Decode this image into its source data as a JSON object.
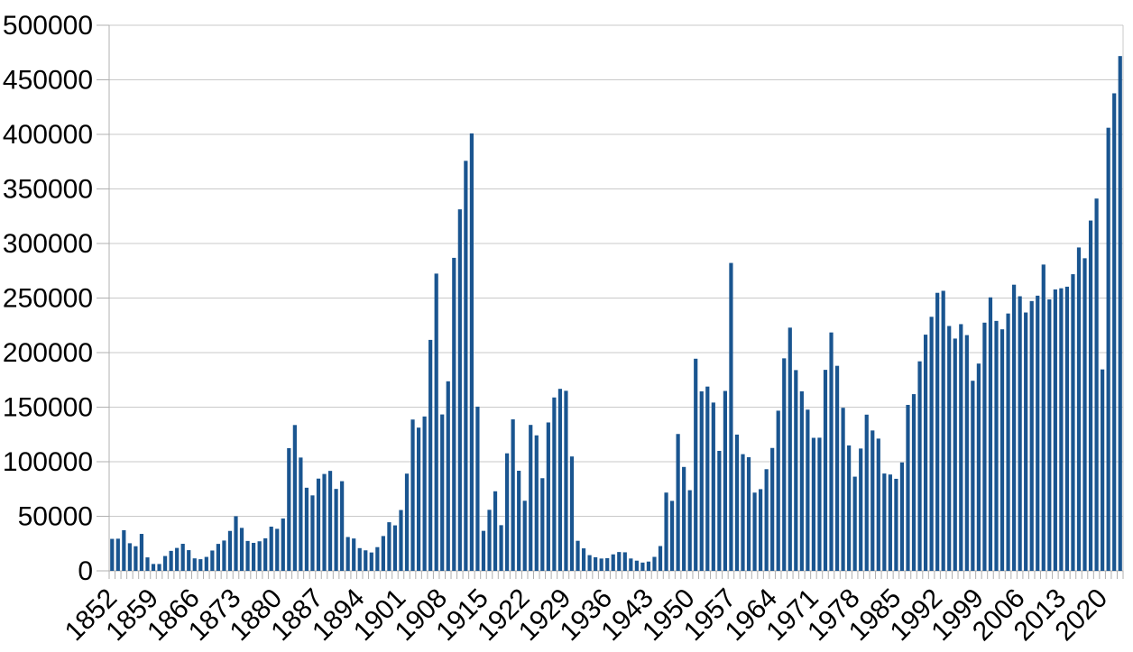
{
  "chart_data": {
    "type": "bar",
    "title": "",
    "xlabel": "",
    "ylabel": "",
    "ylim": [
      0,
      500000
    ],
    "y_tick_step": 50000,
    "y_tick_labels": [
      "0",
      "50000",
      "100000",
      "150000",
      "200000",
      "250000",
      "300000",
      "350000",
      "400000",
      "450000",
      "500000"
    ],
    "x_label_every": 7,
    "x_tick_labels": [
      "1852",
      "1859",
      "1866",
      "1873",
      "1880",
      "1887",
      "1894",
      "1901",
      "1908",
      "1915",
      "1922",
      "1929",
      "1936",
      "1943",
      "1950",
      "1957",
      "1964",
      "1971",
      "1978",
      "1985",
      "1992",
      "1999",
      "2006",
      "2013",
      "2020"
    ],
    "grid": true,
    "legend": false,
    "categories": [
      "1852",
      "1853",
      "1854",
      "1855",
      "1856",
      "1857",
      "1858",
      "1859",
      "1860",
      "1861",
      "1862",
      "1863",
      "1864",
      "1865",
      "1866",
      "1867",
      "1868",
      "1869",
      "1870",
      "1871",
      "1872",
      "1873",
      "1874",
      "1875",
      "1876",
      "1877",
      "1878",
      "1879",
      "1880",
      "1881",
      "1882",
      "1883",
      "1884",
      "1885",
      "1886",
      "1887",
      "1888",
      "1889",
      "1890",
      "1891",
      "1892",
      "1893",
      "1894",
      "1895",
      "1896",
      "1897",
      "1898",
      "1899",
      "1900",
      "1901",
      "1902",
      "1903",
      "1904",
      "1905",
      "1906",
      "1907",
      "1908",
      "1909",
      "1910",
      "1911",
      "1912",
      "1913",
      "1914",
      "1915",
      "1916",
      "1917",
      "1918",
      "1919",
      "1920",
      "1921",
      "1922",
      "1923",
      "1924",
      "1925",
      "1926",
      "1927",
      "1928",
      "1929",
      "1930",
      "1931",
      "1932",
      "1933",
      "1934",
      "1935",
      "1936",
      "1937",
      "1938",
      "1939",
      "1940",
      "1941",
      "1942",
      "1943",
      "1944",
      "1945",
      "1946",
      "1947",
      "1948",
      "1949",
      "1950",
      "1951",
      "1952",
      "1953",
      "1954",
      "1955",
      "1956",
      "1957",
      "1958",
      "1959",
      "1960",
      "1961",
      "1962",
      "1963",
      "1964",
      "1965",
      "1966",
      "1967",
      "1968",
      "1969",
      "1970",
      "1971",
      "1972",
      "1973",
      "1974",
      "1975",
      "1976",
      "1977",
      "1978",
      "1979",
      "1980",
      "1981",
      "1982",
      "1983",
      "1984",
      "1985",
      "1986",
      "1987",
      "1988",
      "1989",
      "1990",
      "1991",
      "1992",
      "1993",
      "1994",
      "1995",
      "1996",
      "1997",
      "1998",
      "1999",
      "2000",
      "2001",
      "2002",
      "2003",
      "2004",
      "2005",
      "2006",
      "2007",
      "2008",
      "2009",
      "2010",
      "2011",
      "2012",
      "2013",
      "2014",
      "2015",
      "2016",
      "2017",
      "2018",
      "2019",
      "2020",
      "2021",
      "2022",
      "2023"
    ],
    "values": [
      29307,
      29464,
      37263,
      25296,
      22544,
      33854,
      12339,
      6300,
      6276,
      13589,
      18294,
      21000,
      24779,
      18958,
      11427,
      10666,
      12765,
      18630,
      24706,
      27773,
      36578,
      50050,
      39373,
      27382,
      25633,
      27082,
      29807,
      40492,
      38505,
      47991,
      112458,
      133624,
      103824,
      76169,
      69152,
      84526,
      88766,
      91600,
      75067,
      82165,
      30996,
      29633,
      20829,
      18790,
      16835,
      21716,
      31900,
      44543,
      41681,
      55747,
      89102,
      138660,
      131252,
      141465,
      211653,
      272409,
      143326,
      173694,
      286839,
      331288,
      375756,
      400870,
      150484,
      36665,
      55914,
      72910,
      41845,
      107698,
      138824,
      91728,
      64224,
      133729,
      124164,
      84907,
      135982,
      158886,
      166783,
      164993,
      104806,
      27530,
      20591,
      14382,
      12476,
      11277,
      11643,
      15101,
      17244,
      16994,
      11324,
      9329,
      7576,
      8504,
      12801,
      22722,
      71719,
      64127,
      125414,
      95217,
      73912,
      194391,
      164498,
      168868,
      154227,
      109946,
      164857,
      282164,
      124851,
      106928,
      104111,
      71698,
      74856,
      93151,
      112606,
      146758,
      194743,
      222876,
      183974,
      164531,
      147713,
      121900,
      122006,
      184200,
      218465,
      187881,
      149429,
      114914,
      86313,
      112093,
      143140,
      128642,
      121179,
      89188,
      88272,
      84345,
      99355,
      152079,
      161929,
      192001,
      216452,
      232808,
      254789,
      256637,
      224385,
      212866,
      226071,
      216035,
      174195,
      189951,
      227455,
      250637,
      229048,
      221349,
      235823,
      262242,
      251640,
      236753,
      247246,
      252172,
      280687,
      248748,
      257887,
      258953,
      260404,
      271845,
      296346,
      286479,
      321035,
      341180,
      184598,
      406055,
      437630,
      471771
    ]
  },
  "style": {
    "bar_color": "#1a5590",
    "grid_color": "#c9c9c9",
    "axis_color": "#b0b0b0",
    "tick_color": "#b0b0b0",
    "text_color": "#000000",
    "background": "#ffffff"
  }
}
